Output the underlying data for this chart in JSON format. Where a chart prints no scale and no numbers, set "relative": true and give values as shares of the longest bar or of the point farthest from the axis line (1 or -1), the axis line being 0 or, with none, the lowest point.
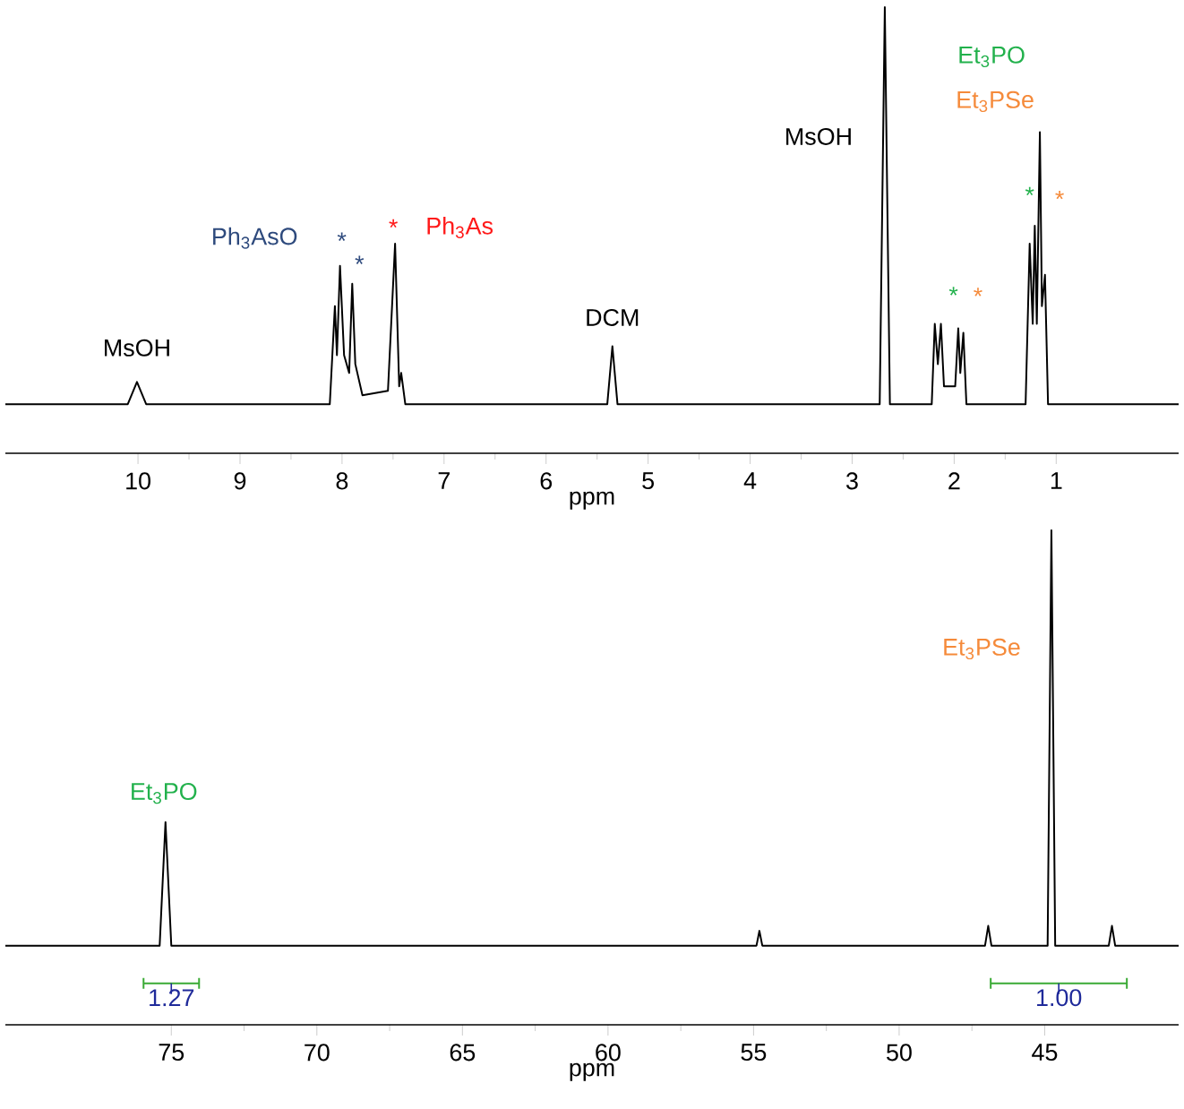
{
  "chart_data": [
    {
      "type": "line",
      "relative": true,
      "xlabel": "ppm",
      "xlim": [
        11.3,
        -0.2
      ],
      "xticks": [
        10,
        9,
        8,
        7,
        6,
        5,
        4,
        3,
        2,
        1
      ],
      "series": [
        {
          "color": "#000000",
          "x": [
            11.3,
            10.1,
            10.01,
            9.92,
            8.12,
            8.07,
            8.05,
            8.02,
            7.98,
            7.93,
            7.9,
            7.87,
            7.8,
            7.55,
            7.48,
            7.44,
            7.42,
            7.38,
            5.4,
            5.35,
            5.3,
            2.73,
            2.68,
            2.63,
            2.22,
            2.19,
            2.16,
            2.13,
            2.1,
            1.99,
            1.96,
            1.94,
            1.91,
            1.88,
            1.3,
            1.26,
            1.23,
            1.21,
            1.19,
            1.16,
            1.14,
            1.11,
            1.08,
            -0.2
          ],
          "values": [
            0.11,
            0.11,
            0.16,
            0.11,
            0.11,
            0.33,
            0.22,
            0.42,
            0.22,
            0.18,
            0.38,
            0.2,
            0.13,
            0.14,
            0.47,
            0.15,
            0.18,
            0.11,
            0.11,
            0.24,
            0.11,
            0.11,
            1.0,
            0.11,
            0.11,
            0.29,
            0.2,
            0.29,
            0.15,
            0.15,
            0.28,
            0.18,
            0.27,
            0.11,
            0.11,
            0.47,
            0.29,
            0.51,
            0.29,
            0.72,
            0.33,
            0.4,
            0.11,
            0.11
          ]
        }
      ],
      "annotations": [
        {
          "text": "MsOH",
          "x": 10.01,
          "y": 0.16
        },
        {
          "text": "Ph$_{3}$AsO",
          "x": 8.05,
          "y": 0.33
        },
        {
          "text": "*",
          "x": 8.02,
          "y": 0.42
        },
        {
          "text": "*",
          "x": 7.9,
          "y": 0.38
        },
        {
          "text": "*",
          "x": 7.48,
          "y": 0.47
        },
        {
          "text": "Ph$_{3}$As",
          "x": 7.48,
          "y": 0.47
        },
        {
          "text": "DCM",
          "x": 5.35,
          "y": 0.24
        },
        {
          "text": "MsOH",
          "x": 2.68,
          "y": 0.71
        },
        {
          "text": "Et$_{3}$PO",
          "x": 1.16,
          "y": 0.72
        },
        {
          "text": "Et$_{3}$PSe",
          "x": 1.16,
          "y": 0.72
        },
        {
          "text": "*",
          "x": 2.13,
          "y": 0.29
        },
        {
          "text": "*",
          "x": 1.96,
          "y": 0.28
        },
        {
          "text": "*",
          "x": 1.26,
          "y": 0.47
        },
        {
          "text": "*",
          "x": 1.16,
          "y": 0.57
        }
      ]
    },
    {
      "type": "line",
      "relative": true,
      "xlabel": "ppm",
      "xlim": [
        80.7,
        40.4
      ],
      "xticks": [
        75,
        70,
        65,
        60,
        55,
        50,
        45
      ],
      "series": [
        {
          "color": "#000000",
          "x": [
            80.7,
            75.4,
            75.2,
            75.0,
            54.9,
            54.8,
            54.7,
            47.05,
            46.94,
            46.83,
            44.9,
            44.77,
            44.64,
            42.8,
            42.69,
            42.58,
            40.4
          ],
          "values": [
            0.16,
            0.16,
            0.41,
            0.16,
            0.16,
            0.19,
            0.16,
            0.16,
            0.2,
            0.16,
            0.16,
            1.0,
            0.16,
            0.16,
            0.2,
            0.16,
            0.16
          ]
        }
      ],
      "annotations": [
        {
          "text": "Et$_{3}$PO",
          "x": 75.2,
          "y": 0.41
        },
        {
          "text": "Et$_{3}$PSe",
          "x": 44.77,
          "y": 0.76
        },
        {
          "text": "1.27",
          "x": 75.0,
          "y": 0.16
        },
        {
          "text": "1.00",
          "x": 44.64,
          "y": 0.16
        }
      ]
    }
  ]
}
